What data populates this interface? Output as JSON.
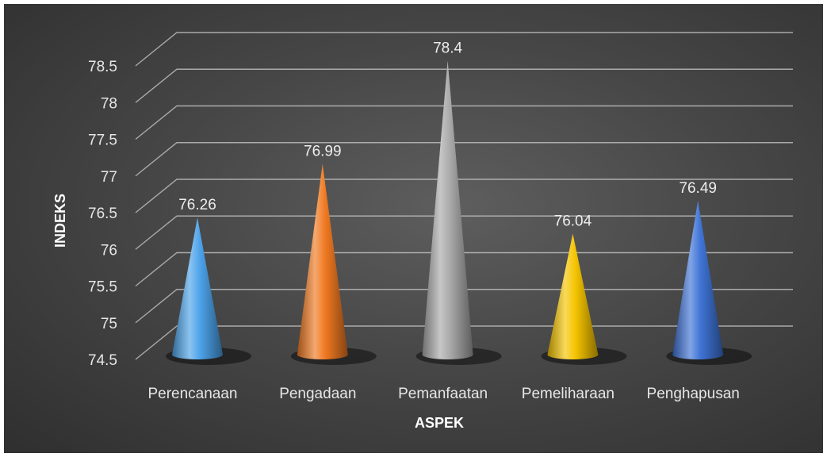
{
  "chart_data": {
    "type": "bar",
    "style": "3d-cone",
    "categories": [
      "Perencanaan",
      "Pengadaan",
      "Pemanfaatan",
      "Pemeliharaan",
      "Penghapusan"
    ],
    "values": [
      76.26,
      76.99,
      78.4,
      76.04,
      76.49
    ],
    "data_labels": [
      "76.26",
      "76.99",
      "78.4",
      "76.04",
      "76.49"
    ],
    "colors": [
      "#4da3ea",
      "#f07a22",
      "#a9a9a9",
      "#f5c400",
      "#3f74d6"
    ],
    "xlabel": "ASPEK",
    "ylabel": "INDEKS",
    "ylim": [
      74.5,
      78.5
    ],
    "yticks": [
      "74.5",
      "75",
      "75.5",
      "76",
      "76.5",
      "77",
      "77.5",
      "78",
      "78.5"
    ],
    "grid": true,
    "legend": "none"
  }
}
